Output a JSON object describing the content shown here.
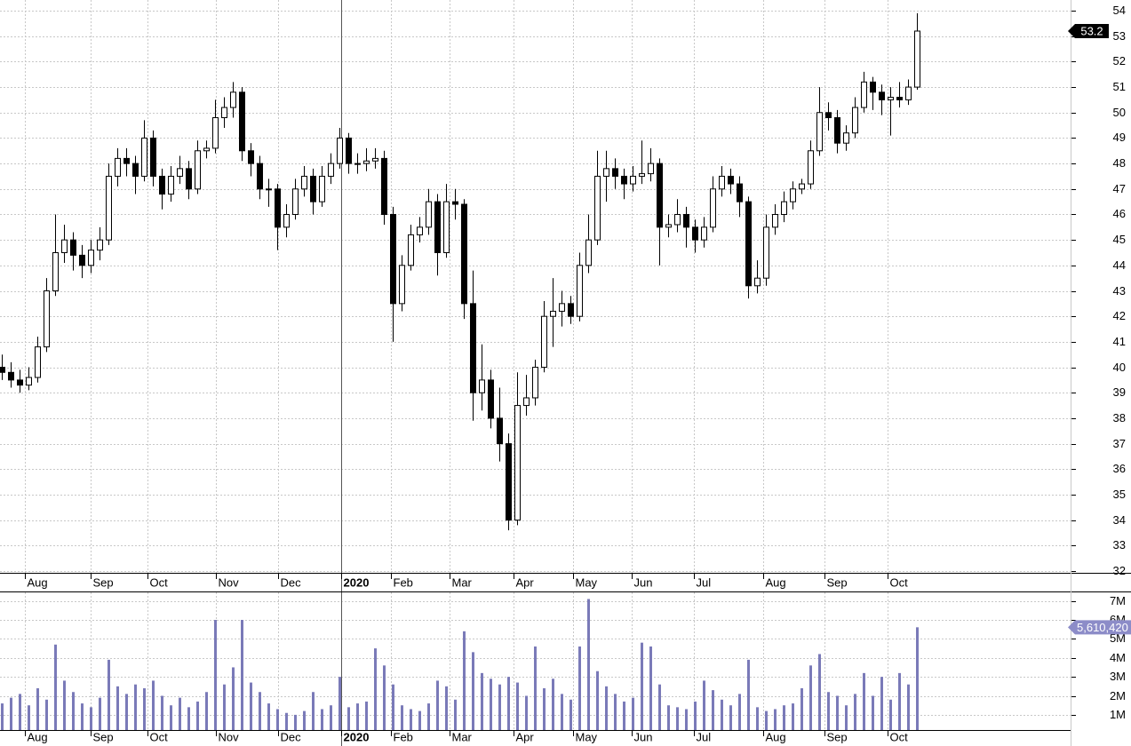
{
  "chart_data": {
    "type": "candlestick",
    "xlim": [
      -0.2,
      120.3
    ],
    "xticks": [
      {
        "value": 2.6,
        "label": "Aug"
      },
      {
        "value": 10,
        "label": "Sep"
      },
      {
        "value": 16.4,
        "label": "Oct"
      },
      {
        "value": 24.1,
        "label": "Nov"
      },
      {
        "value": 31.1,
        "label": "Dec"
      },
      {
        "value": 38.2,
        "label": "2020"
      },
      {
        "value": 43.8,
        "label": "Feb"
      },
      {
        "value": 50.4,
        "label": "Mar"
      },
      {
        "value": 57.6,
        "label": "Apr"
      },
      {
        "value": 64.3,
        "label": "May"
      },
      {
        "value": 70.9,
        "label": "Jun"
      },
      {
        "value": 77.9,
        "label": "Jul"
      },
      {
        "value": 85.7,
        "label": "Aug"
      },
      {
        "value": 92.6,
        "label": "Sep"
      },
      {
        "value": 99.7,
        "label": "Oct"
      }
    ],
    "ylim": [
      31.93,
      54.42
    ],
    "yticks": [
      32,
      33,
      34,
      35,
      36,
      37,
      38,
      39,
      40,
      41,
      42,
      43,
      44,
      45,
      46,
      47,
      48,
      49,
      50,
      51,
      52,
      53,
      54
    ],
    "y2lim": [
      200000,
      7450000
    ],
    "y2ticks": [
      {
        "value": 1000000,
        "label": "1M"
      },
      {
        "value": 2000000,
        "label": "2M"
      },
      {
        "value": 3000000,
        "label": "3M"
      },
      {
        "value": 4000000,
        "label": "4M"
      },
      {
        "value": 5000000,
        "label": "5M"
      },
      {
        "value": 6000000,
        "label": "6M"
      },
      {
        "value": 7000000,
        "label": "7M"
      }
    ],
    "grid": true,
    "up_color": "#ffffff",
    "down_color": "#000000",
    "volume_color": "#7a7ab8",
    "volume_marker": {
      "value": 5610420,
      "label": "5,610,420"
    },
    "open": [
      40,
      39.8,
      39.5,
      39.3,
      39.6,
      40.8,
      43,
      44.5,
      45,
      44.4,
      44,
      44.6,
      45,
      47.5,
      48.2,
      48,
      47.5,
      49,
      47.5,
      46.8,
      47.5,
      47.8,
      47,
      48.5,
      48.6,
      49.8,
      50.2,
      50.8,
      48.5,
      48,
      47,
      47,
      45.5,
      46,
      47,
      47.5,
      46.5,
      47.5,
      48,
      49,
      48,
      48,
      48.1,
      48.2,
      46,
      42.5,
      44,
      45.2,
      45.5,
      46.5,
      44.5,
      46.5,
      46.4,
      42.5,
      39,
      39.5,
      38,
      37,
      34,
      38.5,
      38.8,
      40,
      42,
      42.2,
      42.5,
      42,
      44,
      45,
      47.5,
      47.8,
      47.5,
      47.2,
      47.5,
      47.6,
      48,
      45.5,
      45.6,
      46,
      45.5,
      45,
      45.5,
      47,
      47.5,
      47.2,
      46.5,
      43.2,
      43.5,
      45.5,
      46,
      46.5,
      47,
      47.2,
      48.5,
      50,
      49.8,
      48.8,
      49.2,
      50.2,
      51.2,
      50.8,
      50.5,
      50.6,
      50.5,
      51
    ],
    "high": [
      40.5,
      40.2,
      39.9,
      40,
      41.2,
      43.5,
      46,
      45.6,
      45.3,
      44.8,
      45,
      45.5,
      48,
      48.6,
      48.6,
      48.3,
      49.7,
      49.3,
      47.8,
      47.9,
      48.3,
      48.1,
      48.9,
      48.9,
      50.5,
      50.6,
      51.2,
      51,
      48.8,
      48.3,
      47.4,
      47.2,
      46.4,
      47.4,
      47.9,
      47.8,
      47.9,
      48.4,
      49.4,
      49.2,
      48.4,
      48.6,
      48.6,
      48.5,
      46.3,
      44.4,
      45.6,
      45.9,
      47,
      46.8,
      47.2,
      47,
      46.6,
      43.8,
      40.9,
      39.9,
      39.2,
      37.4,
      39.8,
      39.7,
      40.3,
      42.6,
      43.5,
      43,
      42.8,
      44.5,
      46,
      48.5,
      48.5,
      48.2,
      47.8,
      47.9,
      48.9,
      48.6,
      48.2,
      46,
      46.6,
      46.3,
      45.8,
      45.9,
      47.5,
      47.9,
      47.8,
      47.5,
      46.7,
      44.2,
      46,
      46.4,
      46.9,
      47.3,
      47.4,
      48.9,
      51,
      50.4,
      50.1,
      49.5,
      50.6,
      51.6,
      51.4,
      51.1,
      51,
      51.2,
      51.3,
      53.9
    ],
    "low": [
      39.5,
      39.2,
      39,
      39.1,
      39.4,
      40.6,
      42.8,
      44.1,
      43.8,
      43.5,
      43.7,
      44.2,
      44.8,
      47.1,
      47.5,
      46.8,
      47.3,
      47.1,
      46.2,
      46.5,
      47.2,
      46.6,
      46.8,
      48.2,
      48.4,
      49.4,
      49.8,
      48.1,
      47.5,
      46.6,
      46.3,
      44.6,
      45.1,
      45.8,
      46.7,
      46,
      46.3,
      47.2,
      47.8,
      47.6,
      47.6,
      47.7,
      47.8,
      45.6,
      41,
      42.2,
      43.8,
      44.9,
      45.2,
      43.6,
      44.3,
      45.8,
      41.9,
      37.9,
      38.3,
      37.6,
      36.3,
      33.6,
      33.8,
      38.1,
      38.5,
      39.8,
      40.8,
      41.6,
      41.7,
      41.8,
      43.7,
      44.8,
      46.5,
      47,
      46.6,
      46.9,
      47.2,
      47.3,
      44,
      45.1,
      45.3,
      44.7,
      44.5,
      44.7,
      45.3,
      46.7,
      46.8,
      45.9,
      42.7,
      42.9,
      43.2,
      45.2,
      45.7,
      46.2,
      46.8,
      47,
      48.3,
      49.3,
      48.4,
      48.5,
      49,
      50,
      50.1,
      49.9,
      49.1,
      50.2,
      50.3,
      50.9
    ],
    "close": [
      39.8,
      39.5,
      39.3,
      39.6,
      40.8,
      43,
      44.5,
      45,
      44.4,
      44,
      44.6,
      45,
      47.5,
      48.2,
      48,
      47.5,
      49,
      47.5,
      46.8,
      47.5,
      47.8,
      47,
      48.5,
      48.6,
      49.8,
      50.2,
      50.8,
      48.5,
      48,
      47,
      47,
      45.5,
      46,
      47,
      47.5,
      46.5,
      47.5,
      48,
      49,
      48,
      48,
      48.1,
      48.2,
      46,
      42.5,
      44,
      45.2,
      45.5,
      46.5,
      44.5,
      46.5,
      46.4,
      42.5,
      39,
      39.5,
      38,
      37,
      34,
      38.5,
      38.8,
      40,
      42,
      42.2,
      42.5,
      42,
      44,
      45,
      47.5,
      47.8,
      47.5,
      47.2,
      47.5,
      47.6,
      48,
      45.5,
      45.6,
      46,
      45.5,
      45,
      45.5,
      47,
      47.5,
      47.2,
      46.5,
      43.2,
      43.5,
      45.5,
      46,
      46.5,
      47,
      47.2,
      48.5,
      50,
      49.8,
      48.8,
      49.2,
      50.2,
      51.2,
      50.8,
      50.5,
      50.6,
      50.5,
      51,
      53.2
    ],
    "volume": [
      1600000,
      1900000,
      2100000,
      1500000,
      2400000,
      1800000,
      4700000,
      2800000,
      2200000,
      1600000,
      1400000,
      1900000,
      3900000,
      2500000,
      2100000,
      2600000,
      2400000,
      2800000,
      2000000,
      1500000,
      1900000,
      1400000,
      1700000,
      2200000,
      6000000,
      2600000,
      3500000,
      6000000,
      2700000,
      2200000,
      1600000,
      1300000,
      1100000,
      1000000,
      1200000,
      2200000,
      1300000,
      1500000,
      3000000,
      1400000,
      1600000,
      1700000,
      4500000,
      3600000,
      2600000,
      1500000,
      1300000,
      1200000,
      1600000,
      2800000,
      2500000,
      1800000,
      5400000,
      4300000,
      3200000,
      2900000,
      2600000,
      3000000,
      2700000,
      2000000,
      4600000,
      2400000,
      2900000,
      2100000,
      1800000,
      4600000,
      7100000,
      3300000,
      2500000,
      2100000,
      1700000,
      1900000,
      4800000,
      4600000,
      2600000,
      1500000,
      1400000,
      1300000,
      1700000,
      2800000,
      2300000,
      1800000,
      1500000,
      2100000,
      3900000,
      1400000,
      1200000,
      1300000,
      1500000,
      1600000,
      2400000,
      3600000,
      4200000,
      2200000,
      2000000,
      1500000,
      2100000,
      3200000,
      2000000,
      3000000,
      1800000,
      3200000,
      2600000,
      5610420
    ]
  }
}
